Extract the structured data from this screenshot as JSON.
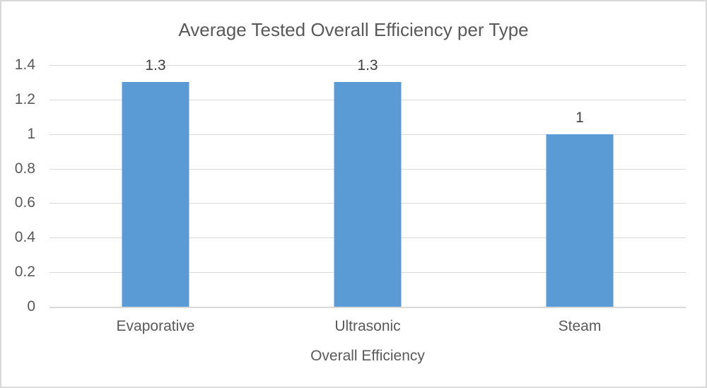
{
  "chart_data": {
    "type": "bar",
    "title": "Average Tested Overall Efficiency per Type",
    "xlabel": "Overall Efficiency",
    "ylabel": "",
    "categories": [
      "Evaporative",
      "Ultrasonic",
      "Steam"
    ],
    "values": [
      1.3,
      1.3,
      1
    ],
    "data_labels": [
      "1.3",
      "1.3",
      "1"
    ],
    "ylim": [
      0,
      1.4
    ],
    "ytick_step": 0.2,
    "ytick_labels": [
      "0",
      "0.2",
      "0.4",
      "0.6",
      "0.8",
      "1",
      "1.2",
      "1.4"
    ],
    "grid": true,
    "legend": false,
    "colors": {
      "bar": "#5B9BD5",
      "gridline": "#D9D9D9",
      "axis_line": "#D9D9D9",
      "text": "#595959",
      "data_label": "#404040",
      "border": "#D9D9D9",
      "background": "#FFFFFF"
    }
  }
}
